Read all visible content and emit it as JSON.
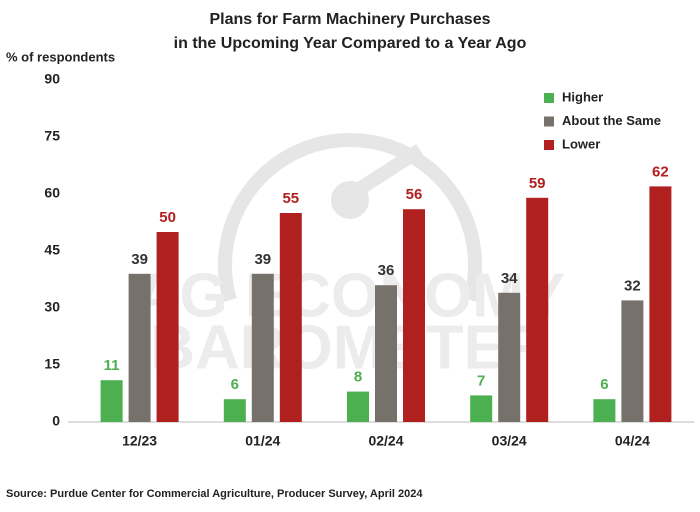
{
  "chart_data": {
    "type": "bar",
    "title": [
      "Plans for Farm Machinery Purchases",
      "in the Upcoming Year Compared to a Year Ago"
    ],
    "y_label": "% of respondents",
    "source": "Source: Purdue Center for Commercial Agriculture, Producer Survey, April 2024",
    "watermark": [
      "AG ECONOMY",
      "BAROMETER"
    ],
    "categories": [
      "12/23",
      "01/24",
      "02/24",
      "03/24",
      "04/24"
    ],
    "series": [
      {
        "name": "Higher",
        "color": "#4caf50",
        "label_color": "#4caf50",
        "values": [
          11,
          6,
          8,
          7,
          6
        ]
      },
      {
        "name": "About the Same",
        "color": "#77716b",
        "label_color": "#333333",
        "values": [
          39,
          39,
          36,
          34,
          32
        ]
      },
      {
        "name": "Lower",
        "color": "#b0201e",
        "label_color": "#b0201e",
        "values": [
          50,
          55,
          56,
          59,
          62
        ]
      }
    ],
    "ylim": [
      0,
      90
    ],
    "yticks": [
      0,
      15,
      30,
      45,
      60,
      75,
      90
    ],
    "grid": false,
    "legend": "top-right"
  }
}
